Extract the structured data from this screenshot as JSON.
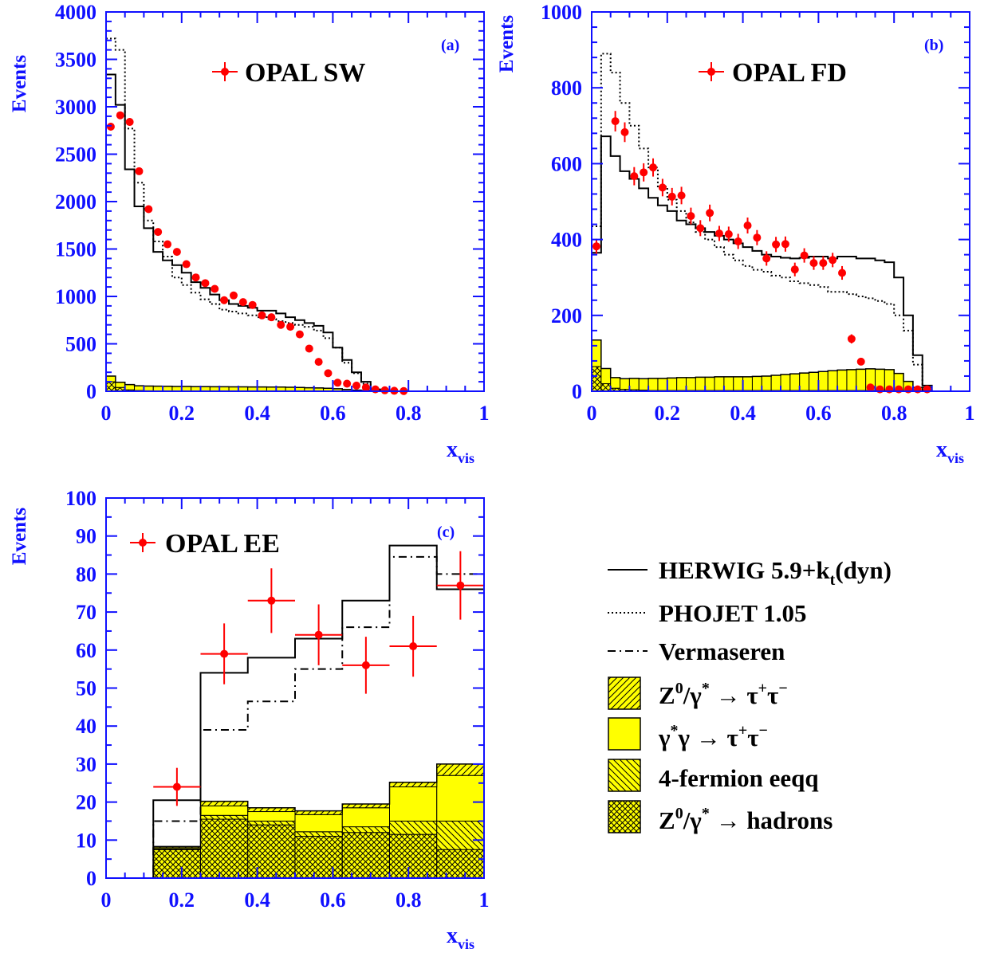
{
  "colors": {
    "axis": "#1010ff",
    "data_points": "#ff0000",
    "herwig": "#000000",
    "fill_yellow": "#ffff00",
    "hatch": "#000000"
  },
  "chart_data": [
    {
      "type": "histogram",
      "panel_tag": "(a)",
      "label": "OPAL SW",
      "xlabel": "x",
      "xlabel_sub": "vis",
      "ylabel": "Events",
      "xlim": [
        0,
        1
      ],
      "ylim": [
        0,
        4000
      ],
      "x_ticks": [
        "0",
        "0.2",
        "0.4",
        "0.6",
        "0.8",
        "1"
      ],
      "y_ticks": [
        "0",
        "500",
        "1000",
        "1500",
        "2000",
        "2500",
        "3000",
        "3500",
        "4000"
      ],
      "bin_edges": [
        0,
        0.025,
        0.05,
        0.075,
        0.1,
        0.125,
        0.15,
        0.175,
        0.2,
        0.225,
        0.25,
        0.275,
        0.3,
        0.325,
        0.35,
        0.375,
        0.4,
        0.425,
        0.45,
        0.475,
        0.5,
        0.525,
        0.55,
        0.575,
        0.6,
        0.625,
        0.65,
        0.675,
        0.7,
        0.725,
        0.75,
        0.775,
        0.8,
        0.825,
        0.85,
        0.875,
        0.9,
        0.925,
        0.95,
        0.975,
        1.0
      ],
      "series": [
        {
          "name": "OPAL SW",
          "style": "points",
          "x": [
            0.0125,
            0.0375,
            0.0625,
            0.0875,
            0.1125,
            0.1375,
            0.1625,
            0.1875,
            0.2125,
            0.2375,
            0.2625,
            0.2875,
            0.3125,
            0.3375,
            0.3625,
            0.3875,
            0.4125,
            0.4375,
            0.4625,
            0.4875,
            0.5125,
            0.5375,
            0.5625,
            0.5875,
            0.6125,
            0.6375,
            0.6625,
            0.6875,
            0.7125,
            0.7375,
            0.7625,
            0.7875
          ],
          "y": [
            2790,
            2910,
            2840,
            2320,
            1920,
            1680,
            1550,
            1470,
            1340,
            1200,
            1140,
            1080,
            960,
            1010,
            940,
            910,
            800,
            780,
            700,
            680,
            600,
            450,
            310,
            190,
            90,
            80,
            60,
            40,
            20,
            10,
            5,
            2
          ],
          "yerr": [
            40,
            40,
            40,
            35,
            30,
            30,
            28,
            27,
            26,
            25,
            24,
            24,
            22,
            23,
            22,
            22,
            20,
            20,
            19,
            19,
            18,
            16,
            13,
            10,
            7,
            6,
            6,
            5,
            4,
            3,
            2,
            2
          ]
        },
        {
          "name": "HERWIG 5.9+k_t(dyn)",
          "style": "solid",
          "y": [
            3340,
            3020,
            2340,
            1950,
            1720,
            1470,
            1380,
            1330,
            1250,
            1150,
            1090,
            1020,
            960,
            920,
            900,
            880,
            850,
            850,
            820,
            780,
            750,
            720,
            690,
            620,
            460,
            330,
            200,
            100,
            20,
            5,
            0,
            0,
            0,
            0,
            0,
            0,
            0,
            0,
            0,
            0
          ]
        },
        {
          "name": "PHOJET 1.05",
          "style": "dotted",
          "y": [
            3720,
            3600,
            2770,
            2200,
            1800,
            1580,
            1420,
            1200,
            1120,
            1040,
            970,
            920,
            860,
            840,
            820,
            800,
            780,
            760,
            740,
            720,
            700,
            680,
            640,
            560,
            460,
            300,
            190,
            80,
            15,
            5,
            0,
            0,
            0,
            0,
            0,
            0,
            0,
            0,
            0,
            0
          ]
        },
        {
          "name": "γ*γ → τ+τ−",
          "style": "yellow",
          "y": [
            60,
            55,
            55,
            50,
            50,
            50,
            50,
            48,
            48,
            46,
            46,
            45,
            45,
            44,
            44,
            43,
            43,
            42,
            42,
            40,
            38,
            36,
            34,
            30,
            25,
            18,
            12,
            8,
            4,
            2,
            0,
            0,
            0,
            0,
            0,
            0,
            0,
            0,
            0,
            0
          ]
        },
        {
          "name": "Z0/γ* → hadrons",
          "style": "crosshatch",
          "y": [
            100,
            40,
            15,
            8,
            5,
            4,
            3,
            2,
            2,
            2,
            2,
            2,
            2,
            2,
            2,
            2,
            2,
            2,
            2,
            2,
            2,
            1,
            1,
            1,
            1,
            1,
            0,
            0,
            0,
            0,
            0,
            0,
            0,
            0,
            0,
            0,
            0,
            0,
            0,
            0
          ]
        }
      ]
    },
    {
      "type": "histogram",
      "panel_tag": "(b)",
      "label": "OPAL FD",
      "xlabel": "x",
      "xlabel_sub": "vis",
      "ylabel": "Events",
      "xlim": [
        0,
        1
      ],
      "ylim": [
        0,
        1000
      ],
      "x_ticks": [
        "0",
        "0.2",
        "0.4",
        "0.6",
        "0.8",
        "1"
      ],
      "y_ticks": [
        "0",
        "200",
        "400",
        "600",
        "800",
        "1000"
      ],
      "bin_edges": [
        0,
        0.025,
        0.05,
        0.075,
        0.1,
        0.125,
        0.15,
        0.175,
        0.2,
        0.225,
        0.25,
        0.275,
        0.3,
        0.325,
        0.35,
        0.375,
        0.4,
        0.425,
        0.45,
        0.475,
        0.5,
        0.525,
        0.55,
        0.575,
        0.6,
        0.625,
        0.65,
        0.675,
        0.7,
        0.725,
        0.75,
        0.775,
        0.8,
        0.825,
        0.85,
        0.875,
        0.9,
        0.925,
        0.95,
        0.975,
        1.0
      ],
      "series": [
        {
          "name": "OPAL FD",
          "style": "points",
          "x": [
            0.0125,
            0.0625,
            0.0875,
            0.1125,
            0.1375,
            0.1625,
            0.1875,
            0.2125,
            0.2375,
            0.2625,
            0.2875,
            0.3125,
            0.3375,
            0.3625,
            0.3875,
            0.4125,
            0.4375,
            0.4625,
            0.4875,
            0.5125,
            0.5375,
            0.5625,
            0.5875,
            0.6125,
            0.6375,
            0.6625,
            0.6875,
            0.7125,
            0.7375,
            0.7625,
            0.7875,
            0.8125,
            0.8375,
            0.8625,
            0.8875
          ],
          "y": [
            382,
            712,
            683,
            567,
            577,
            590,
            537,
            513,
            516,
            462,
            430,
            470,
            416,
            414,
            395,
            437,
            405,
            350,
            387,
            388,
            321,
            358,
            338,
            338,
            346,
            312,
            138,
            78,
            10,
            5,
            5,
            5,
            5,
            5,
            5
          ],
          "yerr": [
            20,
            27,
            26,
            24,
            24,
            24,
            23,
            23,
            23,
            22,
            21,
            22,
            20,
            20,
            20,
            21,
            20,
            19,
            20,
            20,
            18,
            19,
            18,
            18,
            19,
            18,
            12,
            9,
            3,
            2,
            2,
            2,
            2,
            2,
            2
          ]
        },
        {
          "name": "HERWIG 5.9+k_t(dyn)",
          "style": "solid",
          "y": [
            365,
            672,
            620,
            580,
            560,
            535,
            510,
            490,
            475,
            450,
            440,
            430,
            420,
            410,
            400,
            390,
            380,
            370,
            360,
            355,
            352,
            350,
            352,
            355,
            355,
            350,
            355,
            355,
            350,
            350,
            345,
            340,
            300,
            200,
            95,
            15,
            0,
            0,
            0,
            0
          ]
        },
        {
          "name": "PHOJET 1.05",
          "style": "dotted",
          "y": [
            435,
            890,
            840,
            760,
            700,
            640,
            590,
            540,
            505,
            475,
            445,
            420,
            400,
            380,
            360,
            345,
            330,
            320,
            315,
            305,
            300,
            290,
            285,
            280,
            275,
            262,
            262,
            256,
            250,
            245,
            238,
            230,
            200,
            160,
            70,
            10,
            0,
            0,
            0,
            0
          ]
        },
        {
          "name": "γ*γ → τ+τ−",
          "style": "yellow",
          "y": [
            70,
            40,
            28,
            28,
            30,
            30,
            32,
            32,
            33,
            34,
            34,
            35,
            35,
            36,
            36,
            36,
            36,
            37,
            38,
            40,
            42,
            44,
            46,
            48,
            50,
            52,
            54,
            55,
            56,
            57,
            56,
            55,
            45,
            25,
            10,
            3,
            0,
            0,
            0,
            0
          ]
        },
        {
          "name": "Z0/γ* → hadrons",
          "style": "crosshatch",
          "y": [
            65,
            20,
            8,
            5,
            4,
            3,
            2,
            2,
            2,
            2,
            2,
            2,
            2,
            2,
            2,
            2,
            2,
            2,
            2,
            2,
            2,
            2,
            2,
            2,
            2,
            2,
            2,
            2,
            2,
            2,
            2,
            2,
            2,
            1,
            0,
            0,
            0,
            0,
            0,
            0
          ]
        }
      ]
    },
    {
      "type": "histogram",
      "panel_tag": "(c)",
      "label": "OPAL EE",
      "xlabel": "x",
      "xlabel_sub": "vis",
      "ylabel": "Events",
      "xlim": [
        0,
        1
      ],
      "ylim": [
        0,
        100
      ],
      "x_ticks": [
        "0",
        "0.2",
        "0.4",
        "0.6",
        "0.8",
        "1"
      ],
      "y_ticks": [
        "0",
        "10",
        "20",
        "30",
        "40",
        "50",
        "60",
        "70",
        "80",
        "90",
        "100"
      ],
      "bin_edges": [
        0,
        0.125,
        0.25,
        0.375,
        0.5,
        0.625,
        0.75,
        0.875,
        1.0
      ],
      "series": [
        {
          "name": "OPAL EE",
          "style": "points",
          "x": [
            0.1875,
            0.3125,
            0.4375,
            0.5625,
            0.6875,
            0.8125,
            0.9375
          ],
          "y": [
            24,
            59,
            73,
            64,
            56,
            61,
            77
          ],
          "yerr": [
            5,
            8,
            8.5,
            8,
            7.5,
            8,
            9
          ]
        },
        {
          "name": "HERWIG 5.9+k_t(dyn)",
          "style": "solid",
          "y": [
            0,
            20.5,
            54,
            58,
            63,
            73,
            87.5,
            76
          ]
        },
        {
          "name": "Vermaseren",
          "style": "dashdot",
          "y": [
            0,
            15,
            39,
            46.5,
            55,
            66,
            84.5,
            80
          ]
        },
        {
          "name": "Z0/γ* → τ+τ−",
          "style": "hatch",
          "y": [
            0,
            0.3,
            1.2,
            1.0,
            1.0,
            1.0,
            1.2,
            3.0
          ]
        },
        {
          "name": "γ*γ → τ+τ−",
          "style": "yellow",
          "y": [
            0,
            0.3,
            2.5,
            2.5,
            4.5,
            5.0,
            9.0,
            12.0
          ]
        },
        {
          "name": "4-fermion eeqq",
          "style": "backhatch",
          "y": [
            0,
            0.2,
            1.0,
            1.0,
            1.2,
            1.5,
            3.5,
            7.5
          ]
        },
        {
          "name": "Z0/γ* → hadrons",
          "style": "crosshatch",
          "y": [
            0,
            7.5,
            15.5,
            14.0,
            11.0,
            12.0,
            11.5,
            7.5
          ]
        }
      ]
    }
  ],
  "legend": {
    "herwig": {
      "main": "HERWIG 5.9+k",
      "sub": "t",
      "tail": "(dyn)"
    },
    "phojet": "PHOJET 1.05",
    "vermaseren": "Vermaseren",
    "ztautau": {
      "z": "Z",
      "zsup": "0",
      "slash": "/γ",
      "gsup": "*",
      "arrow": " → τ",
      "tsup1": "+",
      "t2": "τ",
      "tsup2": "−"
    },
    "ggtautau": {
      "g": "γ",
      "gsup": "*",
      "rest": "γ → τ",
      "tsup1": "+",
      "t2": "τ",
      "tsup2": "−"
    },
    "fourfermion": "4-fermion eeqq",
    "zhad": {
      "z": "Z",
      "zsup": "0",
      "slash": "/γ",
      "gsup": "*",
      "rest": " → hadrons"
    }
  }
}
